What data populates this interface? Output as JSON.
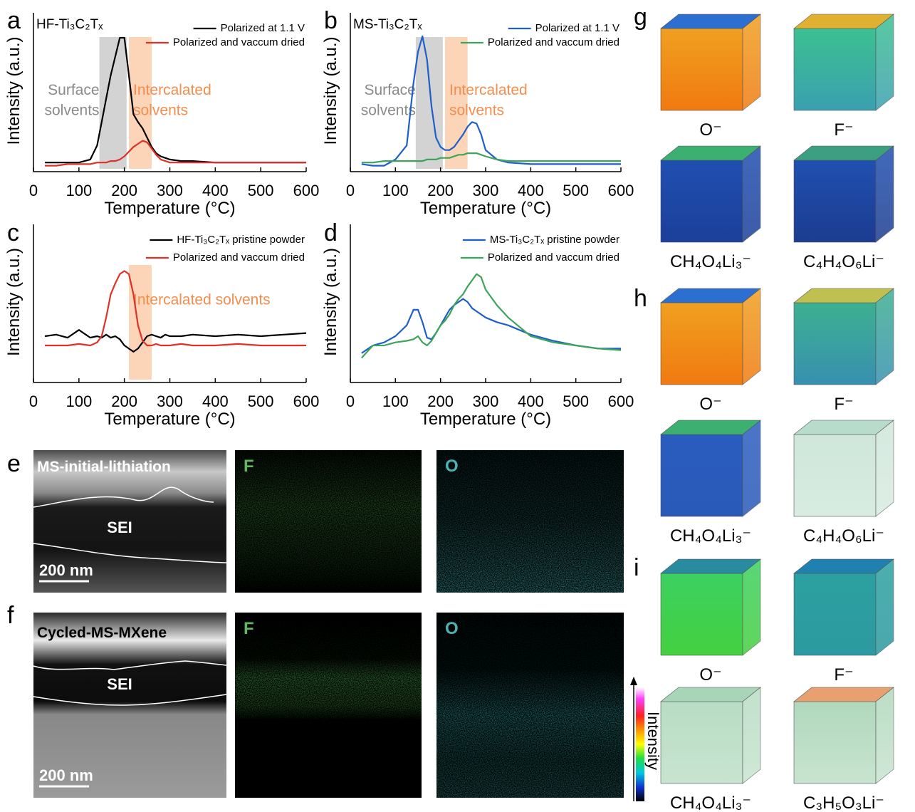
{
  "chart_data": [
    {
      "type": "line",
      "panel": "a",
      "title": "HF-Ti₃C₂Tₓ",
      "xlabel": "Temperature (°C)",
      "ylabel": "Intensity (a.u.)",
      "x": [
        25,
        50,
        75,
        100,
        125,
        140,
        150,
        160,
        170,
        180,
        190,
        200,
        210,
        220,
        230,
        240,
        250,
        260,
        270,
        280,
        290,
        300,
        325,
        350,
        400,
        450,
        500,
        550,
        600
      ],
      "series": [
        {
          "name": "Polarized at 1.1 V",
          "color": "#000000",
          "values": [
            4,
            4,
            4,
            4,
            6,
            15,
            30,
            45,
            60,
            72,
            84,
            84,
            60,
            35,
            30,
            26,
            20,
            14,
            10,
            8,
            7,
            6,
            5,
            5,
            4,
            4,
            4,
            4,
            4
          ]
        },
        {
          "name": "Polarized and vaccum dried",
          "color": "#e0302a",
          "values": [
            2,
            2,
            3,
            3,
            3,
            4,
            4,
            4,
            5,
            5,
            6,
            8,
            11,
            14,
            16,
            18,
            17,
            13,
            9,
            6,
            5,
            4,
            4,
            4,
            4,
            4,
            4,
            4,
            4
          ]
        }
      ],
      "xlim": [
        0,
        600
      ],
      "xticks": [
        0,
        100,
        200,
        300,
        400,
        500,
        600
      ],
      "ylim": [
        0,
        100
      ],
      "legend": "upper right",
      "bands": [
        {
          "label": [
            "Surface",
            "solvents"
          ],
          "x": [
            145,
            205
          ],
          "color": "#c8c8c8",
          "text_color": "#8a8a8a",
          "anchor": "end"
        },
        {
          "label": [
            "Intercalated",
            "solvents"
          ],
          "x": [
            210,
            260
          ],
          "color": "#fbc9a6",
          "text_color": "#f28e4f",
          "anchor": "start"
        }
      ]
    },
    {
      "type": "line",
      "panel": "b",
      "title": "MS-Ti₃C₂Tₓ",
      "xlabel": "Temperature (°C)",
      "ylabel": "Intensity (a.u.)",
      "x": [
        25,
        50,
        75,
        100,
        125,
        140,
        150,
        160,
        170,
        180,
        190,
        200,
        210,
        220,
        230,
        240,
        250,
        260,
        270,
        280,
        290,
        300,
        325,
        350,
        400,
        450,
        500,
        550,
        600
      ],
      "series": [
        {
          "name": "Polarized at 1.1 V",
          "color": "#1f5fc9",
          "values": [
            3,
            2,
            2,
            6,
            15,
            55,
            75,
            85,
            70,
            40,
            20,
            14,
            12,
            12,
            14,
            18,
            22,
            27,
            30,
            29,
            22,
            12,
            6,
            4,
            3,
            3,
            3,
            3,
            3
          ]
        },
        {
          "name": "Polarized and vaccum dried",
          "color": "#3ca55c",
          "values": [
            4,
            4,
            5,
            5,
            5,
            5,
            5,
            5,
            6,
            6,
            6,
            7,
            7,
            7,
            8,
            9,
            9,
            10,
            10,
            10,
            9,
            8,
            6,
            5,
            5,
            5,
            5,
            5,
            5
          ]
        }
      ],
      "xlim": [
        0,
        600
      ],
      "xticks": [
        0,
        100,
        200,
        300,
        400,
        500,
        600
      ],
      "ylim": [
        0,
        100
      ],
      "legend": "upper right",
      "bands": [
        {
          "label": [
            "Surface",
            "solvents"
          ],
          "x": [
            145,
            205
          ],
          "color": "#c8c8c8",
          "text_color": "#8a8a8a",
          "anchor": "end"
        },
        {
          "label": [
            "Intercalated",
            "solvents"
          ],
          "x": [
            210,
            260
          ],
          "color": "#fbc9a6",
          "text_color": "#f28e4f",
          "anchor": "start"
        }
      ]
    },
    {
      "type": "line",
      "panel": "c",
      "xlabel": "Temperature (°C)",
      "ylabel": "Intensity (a.u.)",
      "x": [
        25,
        50,
        75,
        100,
        125,
        140,
        150,
        160,
        170,
        180,
        190,
        200,
        210,
        220,
        230,
        240,
        250,
        260,
        270,
        280,
        290,
        300,
        325,
        350,
        400,
        450,
        500,
        550,
        600
      ],
      "series": [
        {
          "name": "HF-Ti₃C₂Tₓ pristine powder",
          "color": "#000000",
          "values": [
            28,
            29,
            27,
            32,
            27,
            28,
            27,
            29,
            27,
            28,
            26,
            22,
            20,
            18,
            20,
            24,
            28,
            29,
            28,
            27,
            29,
            28,
            28,
            29,
            28,
            29,
            28,
            29,
            30
          ]
        },
        {
          "name": "Polarized and vaccum dried",
          "color": "#e0302a",
          "values": [
            22,
            22,
            22,
            23,
            22,
            24,
            28,
            40,
            55,
            62,
            68,
            70,
            68,
            55,
            35,
            25,
            22,
            22,
            23,
            22,
            22,
            22,
            23,
            22,
            22,
            23,
            22,
            22,
            22
          ]
        }
      ],
      "xlim": [
        0,
        600
      ],
      "xticks": [
        0,
        100,
        200,
        300,
        400,
        500,
        600
      ],
      "ylim": [
        0,
        100
      ],
      "legend": "upper right",
      "bands": [
        {
          "label": [
            "Intercalated solvents"
          ],
          "x": [
            210,
            260
          ],
          "color": "#fbc9a6",
          "text_color": "#f28e4f",
          "anchor": "start"
        }
      ]
    },
    {
      "type": "line",
      "panel": "d",
      "xlabel": "Temperature (°C)",
      "ylabel": "Intensity (a.u.)",
      "x": [
        25,
        50,
        75,
        100,
        125,
        140,
        150,
        160,
        170,
        180,
        190,
        200,
        210,
        220,
        230,
        240,
        250,
        260,
        270,
        280,
        290,
        300,
        325,
        350,
        400,
        450,
        500,
        550,
        600
      ],
      "series": [
        {
          "name": "MS-Ti₃C₂Tₓ pristine powder",
          "color": "#1f5fc9",
          "values": [
            17,
            22,
            24,
            28,
            35,
            45,
            45,
            37,
            27,
            26,
            30,
            35,
            40,
            45,
            48,
            50,
            52,
            50,
            46,
            44,
            42,
            40,
            37,
            35,
            29,
            25,
            22,
            20,
            20
          ]
        },
        {
          "name": "Polarized and vaccum dried",
          "color": "#3ca55c",
          "values": [
            14,
            22,
            22,
            24,
            25,
            26,
            28,
            24,
            22,
            25,
            30,
            35,
            38,
            42,
            48,
            52,
            55,
            60,
            64,
            68,
            66,
            58,
            48,
            40,
            28,
            24,
            22,
            20,
            19
          ]
        }
      ],
      "xlim": [
        0,
        600
      ],
      "xticks": [
        0,
        100,
        200,
        300,
        400,
        500,
        600
      ],
      "ylim": [
        0,
        100
      ],
      "legend": "upper right"
    }
  ],
  "microscopy": [
    {
      "label": "e",
      "title": "MS-initial-lithiation",
      "region": "SEI",
      "scale": "200 nm",
      "maps": [
        "F",
        "O"
      ]
    },
    {
      "label": "f",
      "title": "Cycled-MS-MXene",
      "region": "SEI",
      "scale": "200 nm",
      "maps": [
        "F",
        "O"
      ]
    }
  ],
  "tof_sims": {
    "panels": [
      {
        "label": "g",
        "cubes": [
          "O⁻",
          "F⁻",
          "CH₄O₄Li₃⁻",
          "C₄H₄O₆Li⁻"
        ]
      },
      {
        "label": "h",
        "cubes": [
          "O⁻",
          "F⁻",
          "CH₄O₄Li₃⁻",
          "C₄H₄O₆Li⁻"
        ]
      },
      {
        "label": "i",
        "cubes": [
          "O⁻",
          "F⁻",
          "CH₄O₄Li₃⁻",
          "C₃H₅O₃Li⁻"
        ]
      }
    ],
    "colorbar": "Intensity"
  }
}
